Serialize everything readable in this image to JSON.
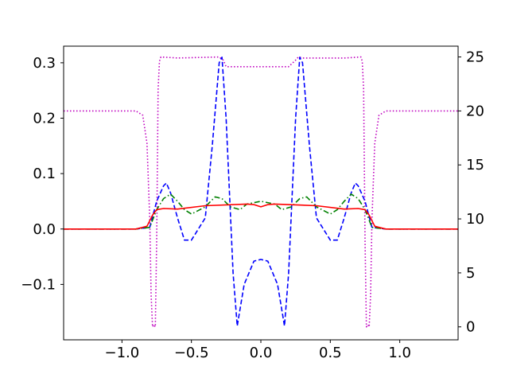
{
  "chart_data": {
    "type": "line",
    "title": "",
    "xlabel": "",
    "ylabel_left": "",
    "ylabel_right": "",
    "xlim": [
      -1.42,
      1.42
    ],
    "ylim_left": [
      -0.2,
      0.33
    ],
    "ylim_right": [
      -1.2,
      26
    ],
    "grid": false,
    "legend": "none",
    "x_ticks": [
      -1.0,
      -0.5,
      0.0,
      0.5,
      1.0
    ],
    "x_tick_labels": [
      "−1.0",
      "−0.5",
      "0.0",
      "0.5",
      "1.0"
    ],
    "y_left_ticks": [
      -0.1,
      0.0,
      0.1,
      0.2,
      0.3
    ],
    "y_left_tick_labels": [
      "−0.1",
      "0.0",
      "0.1",
      "0.2",
      "0.3"
    ],
    "y_right_ticks": [
      0,
      5,
      10,
      15,
      20,
      25
    ],
    "y_right_tick_labels": [
      "0",
      "5",
      "10",
      "15",
      "20",
      "25"
    ],
    "series": [
      {
        "axis": "right",
        "color": "#bf00bf",
        "style": "dotted",
        "x": [
          -1.42,
          -0.9,
          -0.85,
          -0.82,
          -0.8,
          -0.79,
          -0.78,
          -0.77,
          -0.76,
          -0.75,
          -0.74,
          -0.73,
          -0.72,
          -0.6,
          -0.3,
          -0.27,
          -0.25,
          -0.2,
          0.0,
          0.2,
          0.25,
          0.27,
          0.3,
          0.6,
          0.72,
          0.73,
          0.74,
          0.75,
          0.76,
          0.77,
          0.78,
          0.79,
          0.8,
          0.82,
          0.85,
          0.9,
          1.42
        ],
        "y": [
          20,
          20,
          19.6,
          17,
          10,
          3,
          0,
          0.2,
          0,
          8,
          22,
          24.6,
          25,
          24.9,
          25,
          24.7,
          24.1,
          24.1,
          24.1,
          24.1,
          24.7,
          25,
          24.9,
          24.9,
          25,
          24.6,
          22,
          8,
          0,
          0.2,
          0,
          3,
          10,
          17,
          19.6,
          20,
          20
        ]
      },
      {
        "axis": "left",
        "color": "#0000ff",
        "style": "dashed",
        "x": [
          -1.42,
          -0.9,
          -0.8,
          -0.75,
          -0.7,
          -0.68,
          -0.65,
          -0.6,
          -0.55,
          -0.5,
          -0.4,
          -0.35,
          -0.3,
          -0.28,
          -0.25,
          -0.2,
          -0.17,
          -0.12,
          -0.05,
          0.0,
          0.05,
          0.12,
          0.17,
          0.2,
          0.25,
          0.28,
          0.3,
          0.35,
          0.4,
          0.5,
          0.55,
          0.6,
          0.65,
          0.68,
          0.7,
          0.75,
          0.8,
          0.9,
          1.42
        ],
        "y": [
          0,
          0,
          0.003,
          0.05,
          0.078,
          0.083,
          0.065,
          0.02,
          -0.02,
          -0.02,
          0.02,
          0.15,
          0.3,
          0.31,
          0.2,
          -0.08,
          -0.175,
          -0.1,
          -0.058,
          -0.055,
          -0.058,
          -0.1,
          -0.175,
          -0.08,
          0.2,
          0.31,
          0.3,
          0.15,
          0.02,
          -0.02,
          -0.02,
          0.02,
          0.065,
          0.083,
          0.078,
          0.05,
          0.003,
          0,
          0
        ]
      },
      {
        "axis": "left",
        "color": "#008000",
        "style": "dashdot",
        "x": [
          -1.42,
          -0.9,
          -0.8,
          -0.75,
          -0.7,
          -0.65,
          -0.6,
          -0.55,
          -0.5,
          -0.4,
          -0.33,
          -0.28,
          -0.22,
          -0.15,
          -0.1,
          0.0,
          0.1,
          0.15,
          0.22,
          0.28,
          0.33,
          0.4,
          0.5,
          0.55,
          0.6,
          0.65,
          0.7,
          0.75,
          0.8,
          0.9,
          1.42
        ],
        "y": [
          0,
          0,
          0.003,
          0.035,
          0.055,
          0.063,
          0.05,
          0.035,
          0.027,
          0.04,
          0.058,
          0.055,
          0.04,
          0.035,
          0.045,
          0.05,
          0.045,
          0.035,
          0.04,
          0.055,
          0.058,
          0.04,
          0.027,
          0.035,
          0.05,
          0.063,
          0.055,
          0.035,
          0.003,
          0,
          0
        ]
      },
      {
        "axis": "left",
        "color": "#ff0000",
        "style": "solid",
        "x": [
          -1.42,
          -0.9,
          -0.82,
          -0.78,
          -0.75,
          -0.7,
          -0.6,
          -0.4,
          -0.1,
          -0.05,
          0.0,
          0.05,
          0.1,
          0.4,
          0.6,
          0.7,
          0.75,
          0.78,
          0.82,
          0.9,
          1.42
        ],
        "y": [
          0,
          0,
          0.005,
          0.025,
          0.035,
          0.037,
          0.036,
          0.042,
          0.045,
          0.044,
          0.04,
          0.044,
          0.045,
          0.042,
          0.036,
          0.037,
          0.035,
          0.025,
          0.005,
          0,
          0
        ]
      }
    ]
  }
}
